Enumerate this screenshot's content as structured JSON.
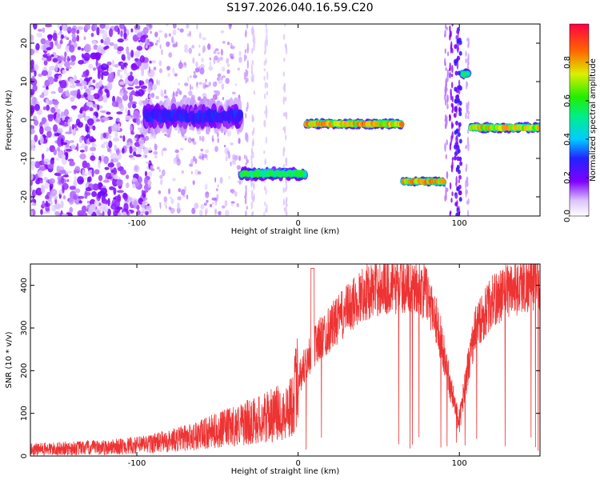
{
  "title": "S197.2026.040.16.59.C20",
  "chart_data": [
    {
      "type": "heatmap",
      "xlabel": "Height of straight line (km)",
      "ylabel": "Frequency (Hz)",
      "xlim": [
        -166,
        150
      ],
      "ylim": [
        -25,
        25
      ],
      "xticks": [
        -100,
        0,
        100
      ],
      "yticks": [
        -20,
        -10,
        0,
        10,
        20
      ],
      "colorbar": {
        "label": "Normalized spectral amplitude",
        "ticks": [
          "0.0",
          "0.2",
          "0.4",
          "0.6",
          "0.8"
        ],
        "range": [
          0,
          1
        ]
      },
      "segments": [
        {
          "x": [
            -95,
            -35
          ],
          "freq": 1,
          "spread": 5,
          "amp": 0.3
        },
        {
          "x": [
            -35,
            5
          ],
          "freq": -14,
          "spread": 1.5,
          "amp": 0.6
        },
        {
          "x": [
            5,
            65
          ],
          "freq": -1,
          "spread": 1,
          "amp": 0.85
        },
        {
          "x": [
            65,
            91
          ],
          "freq": -16,
          "spread": 0.8,
          "amp": 0.85
        },
        {
          "x": [
            102,
            106
          ],
          "freq": 12,
          "spread": 1,
          "amp": 0.6
        },
        {
          "x": [
            107,
            150
          ],
          "freq": -2,
          "spread": 1,
          "amp": 0.8
        }
      ]
    },
    {
      "type": "line",
      "xlabel": "Height of straight line (km)",
      "ylabel": "SNR (10 * v/v)",
      "xlim": [
        -166,
        150
      ],
      "ylim": [
        0,
        450
      ],
      "xticks": [
        -100,
        0,
        100
      ],
      "yticks": [
        0,
        100,
        200,
        300,
        400
      ],
      "color": "#ee3333",
      "x": [
        -166,
        -140,
        -120,
        -100,
        -80,
        -60,
        -40,
        -20,
        -5,
        0,
        10,
        20,
        30,
        40,
        50,
        60,
        70,
        80,
        85,
        90,
        95,
        100,
        105,
        110,
        120,
        130,
        140,
        150
      ],
      "y": [
        15,
        18,
        20,
        25,
        35,
        50,
        70,
        90,
        110,
        180,
        260,
        300,
        340,
        380,
        395,
        400,
        405,
        380,
        330,
        250,
        150,
        80,
        200,
        300,
        360,
        390,
        400,
        410
      ]
    }
  ]
}
